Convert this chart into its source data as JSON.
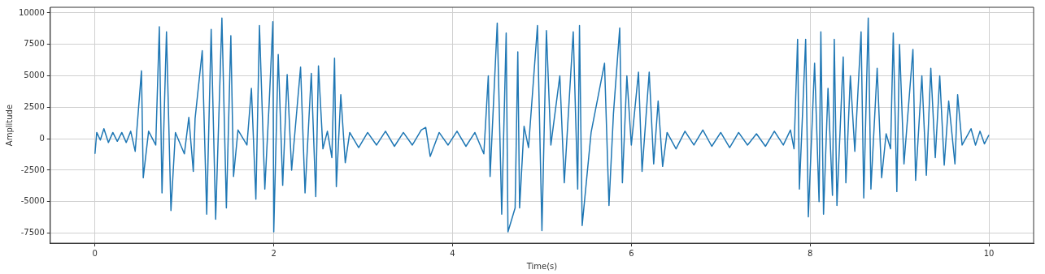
{
  "chart_data": {
    "type": "line",
    "xlabel": "Time(s)",
    "ylabel": "Amplitude",
    "xlim": [
      -0.5,
      10.5
    ],
    "xticks": [
      0,
      2,
      4,
      6,
      8,
      10
    ],
    "ylim": [
      -8300,
      10450
    ],
    "yticks": [
      -7500,
      -5000,
      -2500,
      0,
      2500,
      5000,
      7500,
      10000
    ],
    "grid": true,
    "legend": false,
    "marker": "none",
    "line_style": "solid",
    "series": [
      {
        "color": "#1f77b4",
        "x": [
          0,
          0.02,
          0.06,
          0.1,
          0.15,
          0.2,
          0.25,
          0.3,
          0.35,
          0.4,
          0.45,
          0.52,
          0.54,
          0.6,
          0.68,
          0.72,
          0.75,
          0.8,
          0.85,
          0.9,
          1.0,
          1.05,
          1.1,
          1.12,
          1.2,
          1.25,
          1.3,
          1.35,
          1.42,
          1.47,
          1.52,
          1.55,
          1.6,
          1.7,
          1.75,
          1.8,
          1.84,
          1.9,
          1.95,
          1.99,
          2.0,
          2.05,
          2.1,
          2.15,
          2.2,
          2.3,
          2.35,
          2.42,
          2.47,
          2.5,
          2.55,
          2.6,
          2.65,
          2.68,
          2.7,
          2.75,
          2.8,
          2.85,
          2.95,
          3.05,
          3.15,
          3.25,
          3.35,
          3.45,
          3.55,
          3.65,
          3.7,
          3.75,
          3.85,
          3.95,
          4.05,
          4.15,
          4.25,
          4.35,
          4.4,
          4.42,
          4.5,
          4.55,
          4.6,
          4.62,
          4.7,
          4.73,
          4.75,
          4.8,
          4.85,
          4.95,
          5.0,
          5.05,
          5.1,
          5.2,
          5.25,
          5.35,
          5.4,
          5.42,
          5.45,
          5.55,
          5.7,
          5.75,
          5.8,
          5.87,
          5.9,
          5.95,
          6.0,
          6.08,
          6.12,
          6.2,
          6.25,
          6.3,
          6.35,
          6.4,
          6.5,
          6.6,
          6.7,
          6.8,
          6.9,
          7.0,
          7.1,
          7.2,
          7.3,
          7.4,
          7.5,
          7.6,
          7.7,
          7.78,
          7.82,
          7.86,
          7.88,
          7.95,
          7.98,
          8.05,
          8.1,
          8.12,
          8.15,
          8.2,
          8.25,
          8.27,
          8.3,
          8.37,
          8.4,
          8.45,
          8.5,
          8.57,
          8.6,
          8.65,
          8.68,
          8.75,
          8.8,
          8.85,
          8.9,
          8.93,
          8.97,
          9.0,
          9.05,
          9.15,
          9.18,
          9.25,
          9.3,
          9.35,
          9.4,
          9.45,
          9.5,
          9.55,
          9.62,
          9.65,
          9.7,
          9.8,
          9.85,
          9.9,
          9.95,
          10.0
        ],
        "values": [
          -1200,
          500,
          -100,
          800,
          -300,
          500,
          -200,
          500,
          -300,
          600,
          -1000,
          5400,
          -3100,
          600,
          -500,
          8900,
          -4300,
          8500,
          -5700,
          500,
          -1200,
          1700,
          -2600,
          1600,
          7000,
          -6000,
          8700,
          -6400,
          9600,
          -5500,
          8200,
          -3000,
          700,
          -500,
          4000,
          -4800,
          9000,
          -4000,
          3000,
          9300,
          -7400,
          6700,
          -3700,
          5100,
          -2500,
          5700,
          -4300,
          5200,
          -4600,
          5800,
          -800,
          600,
          -1500,
          6400,
          -3800,
          3500,
          -1900,
          500,
          -700,
          500,
          -500,
          600,
          -600,
          500,
          -500,
          700,
          900,
          -1400,
          500,
          -500,
          600,
          -600,
          500,
          -1200,
          5000,
          -3000,
          9200,
          -6000,
          8400,
          -7400,
          -5500,
          6900,
          -5500,
          1000,
          -700,
          9000,
          -7300,
          8600,
          -500,
          5000,
          -3500,
          8500,
          -4000,
          9000,
          -6900,
          500,
          6000,
          -5300,
          2000,
          8800,
          -3500,
          5000,
          -500,
          5300,
          -2600,
          5300,
          -2000,
          3000,
          -2200,
          500,
          -800,
          600,
          -500,
          700,
          -600,
          500,
          -700,
          500,
          -500,
          400,
          -600,
          600,
          -500,
          700,
          -800,
          7900,
          -4000,
          7900,
          -6200,
          6000,
          -5000,
          8500,
          -6000,
          4000,
          -4500,
          7900,
          -5300,
          6500,
          -3500,
          5000,
          -1000,
          8500,
          -4700,
          9600,
          -4000,
          5600,
          -3100,
          400,
          -800,
          8400,
          -4200,
          7500,
          -2000,
          7100,
          -3300,
          5000,
          -2900,
          5600,
          -1500,
          5000,
          -2100,
          3000,
          -2000,
          3500,
          -500,
          800,
          -500,
          600,
          -400,
          300
        ]
      }
    ]
  }
}
